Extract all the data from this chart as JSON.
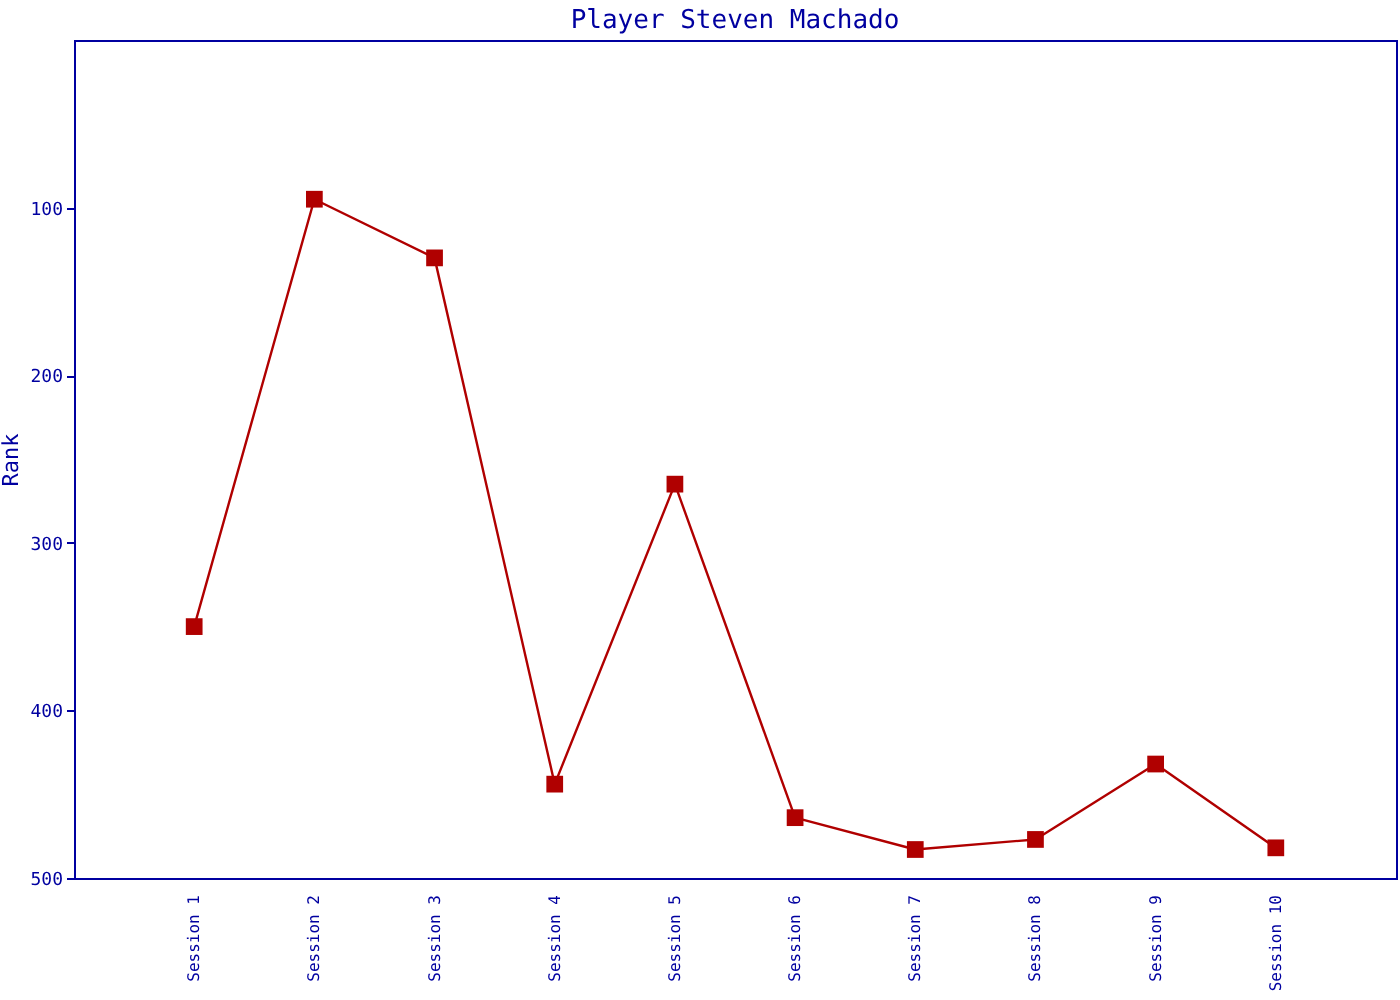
{
  "chart_data": {
    "type": "line",
    "title": "Player Steven Machado",
    "ylabel": "Rank",
    "categories": [
      "Session 1",
      "Session 2",
      "Session 3",
      "Session 4",
      "Session 5",
      "Session 6",
      "Session 7",
      "Session 8",
      "Session 9",
      "Session 10"
    ],
    "series": [
      {
        "color": "#b00000",
        "values": [
          350,
          95,
          130,
          444,
          265,
          464,
          483,
          477,
          432,
          482
        ]
      }
    ],
    "ylim": [
      500,
      0
    ],
    "yticks": [
      100,
      200,
      300,
      400,
      500
    ],
    "marker": "square",
    "grid": false,
    "legend": false
  }
}
